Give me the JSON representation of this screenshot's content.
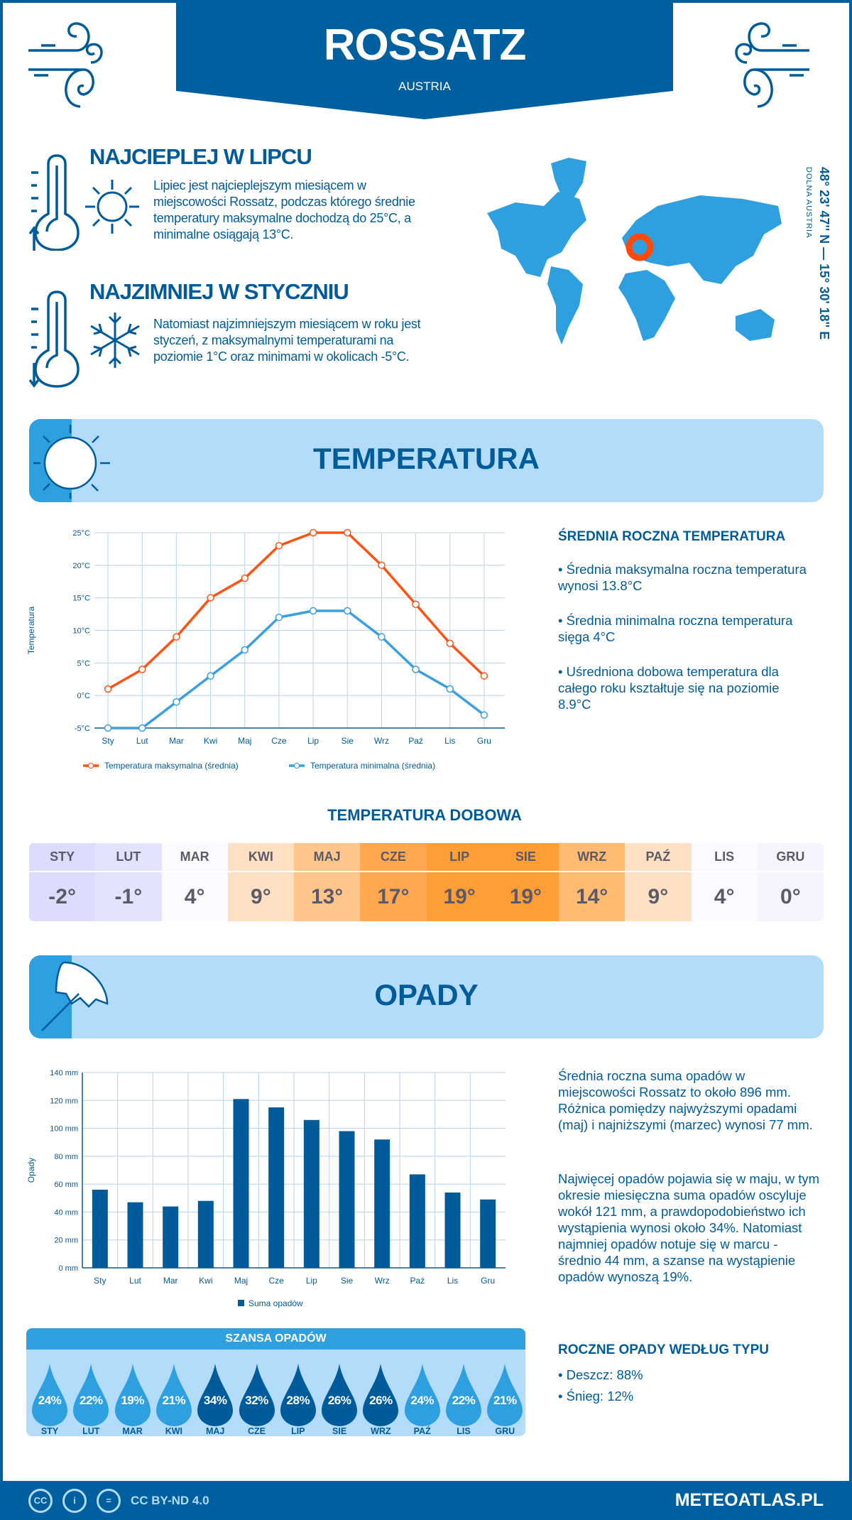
{
  "header": {
    "city": "ROSSATZ",
    "country": "AUSTRIA",
    "coords": "48° 23' 47'' N — 15° 30' 18'' E",
    "region": "DOLNA AUSTRIA"
  },
  "warmest": {
    "title": "NAJCIEPLEJ W LIPCU",
    "text": "Lipiec jest najcieplejszym miesiącem w miejscowości Rossatz, podczas którego średnie temperatury maksymalne dochodzą do 25°C, a minimalne osiągają 13°C."
  },
  "coldest": {
    "title": "NAJZIMNIEJ W STYCZNIU",
    "text": "Natomiast najzimniejszym miesiącem w roku jest styczeń, z maksymalnymi temperaturami na poziomie 1°C oraz minimami w okolicach -5°C."
  },
  "temperature": {
    "banner": "TEMPERATURA",
    "summary_title": "ŚREDNIA ROCZNA TEMPERATURA",
    "bullets": [
      "• Średnia maksymalna roczna temperatura wynosi 13.8°C",
      "• Średnia minimalna roczna temperatura sięga 4°C",
      "• Uśredniona dobowa temperatura dla całego roku kształtuje się na poziomie 8.9°C"
    ],
    "daily_title": "TEMPERATURA DOBOWA",
    "daily": [
      {
        "m": "STY",
        "v": "-2°",
        "bg": "#dcdcfd"
      },
      {
        "m": "LUT",
        "v": "-1°",
        "bg": "#e3e3fe"
      },
      {
        "m": "MAR",
        "v": "4°",
        "bg": "#fbfbff"
      },
      {
        "m": "KWI",
        "v": "9°",
        "bg": "#ffe0c2"
      },
      {
        "m": "MAJ",
        "v": "13°",
        "bg": "#ffc68c"
      },
      {
        "m": "CZE",
        "v": "17°",
        "bg": "#ffa850"
      },
      {
        "m": "LIP",
        "v": "19°",
        "bg": "#ff9d36"
      },
      {
        "m": "SIE",
        "v": "19°",
        "bg": "#ff9d36"
      },
      {
        "m": "WRZ",
        "v": "14°",
        "bg": "#ffbb72"
      },
      {
        "m": "PAŹ",
        "v": "9°",
        "bg": "#ffe0c2"
      },
      {
        "m": "LIS",
        "v": "4°",
        "bg": "#fbfbff"
      },
      {
        "m": "GRU",
        "v": "0°",
        "bg": "#f5f6fd"
      }
    ]
  },
  "precip": {
    "banner": "OPADY",
    "paragraphs": [
      "Średnia roczna suma opadów w miejscowości Rossatz to około 896 mm. Różnica pomiędzy najwyższymi opadami (maj) i najniższymi (marzec) wynosi 77 mm.",
      "Najwięcej opadów pojawia się w maju, w tym okresie miesięczna suma opadów oscyluje wokół 121 mm, a prawdopodobieństwo ich wystąpienia wynosi około 34%. Natomiast najmniej opadów notuje się w marcu - średnio 44 mm, a szanse na wystąpienie opadów wynoszą 19%."
    ],
    "chance_title": "SZANSA OPADÓW",
    "chance": [
      {
        "m": "STY",
        "v": "24%"
      },
      {
        "m": "LUT",
        "v": "22%"
      },
      {
        "m": "MAR",
        "v": "19%"
      },
      {
        "m": "KWI",
        "v": "21%"
      },
      {
        "m": "MAJ",
        "v": "34%"
      },
      {
        "m": "CZE",
        "v": "32%"
      },
      {
        "m": "LIP",
        "v": "28%"
      },
      {
        "m": "SIE",
        "v": "26%"
      },
      {
        "m": "WRZ",
        "v": "26%"
      },
      {
        "m": "PAŹ",
        "v": "24%"
      },
      {
        "m": "LIS",
        "v": "22%"
      },
      {
        "m": "GRU",
        "v": "21%"
      }
    ],
    "type_title": "ROCZNE OPADY WEDŁUG TYPU",
    "types": [
      "• Deszcz: 88%",
      "• Śnieg: 12%"
    ]
  },
  "colors": {
    "primary": "#005b9a",
    "accent": "#2e9fdf",
    "max": "#ff5314",
    "min": "#3a9fde",
    "banner": "#b3dcfb"
  },
  "chart_data": [
    {
      "type": "line",
      "ylabel": "Temperatura",
      "categories": [
        "Sty",
        "Lut",
        "Mar",
        "Kwi",
        "Maj",
        "Cze",
        "Lip",
        "Sie",
        "Wrz",
        "Paź",
        "Lis",
        "Gru"
      ],
      "yticks": [
        "-5°C",
        "0°C",
        "5°C",
        "10°C",
        "15°C",
        "20°C",
        "25°C"
      ],
      "ylim": [
        -5,
        25
      ],
      "grid": true,
      "legend": "bottom",
      "series": [
        {
          "name": "Temperatura maksymalna (średnia)",
          "values": [
            1,
            4,
            9,
            15,
            18,
            23,
            25,
            25,
            20,
            14,
            8,
            3
          ]
        },
        {
          "name": "Temperatura minimalna (średnia)",
          "values": [
            -5,
            -5,
            -1,
            3,
            7,
            12,
            13,
            13,
            9,
            4,
            1,
            -3
          ]
        }
      ]
    },
    {
      "type": "bar",
      "ylabel": "Opady",
      "categories": [
        "Sty",
        "Lut",
        "Mar",
        "Kwi",
        "Maj",
        "Cze",
        "Lip",
        "Sie",
        "Wrz",
        "Paź",
        "Lis",
        "Gru"
      ],
      "yticks": [
        "0 mm",
        "20 mm",
        "40 mm",
        "60 mm",
        "80 mm",
        "100 mm",
        "120 mm",
        "140 mm"
      ],
      "ylim": [
        0,
        140
      ],
      "grid": true,
      "legend": "bottom",
      "series": [
        {
          "name": "Suma opadów",
          "values": [
            56,
            47,
            44,
            48,
            121,
            115,
            106,
            98,
            92,
            67,
            54,
            49
          ]
        }
      ]
    }
  ],
  "footer": {
    "license": "CC BY-ND 4.0",
    "cc": "CC",
    "site": "METEOATLAS.PL"
  }
}
